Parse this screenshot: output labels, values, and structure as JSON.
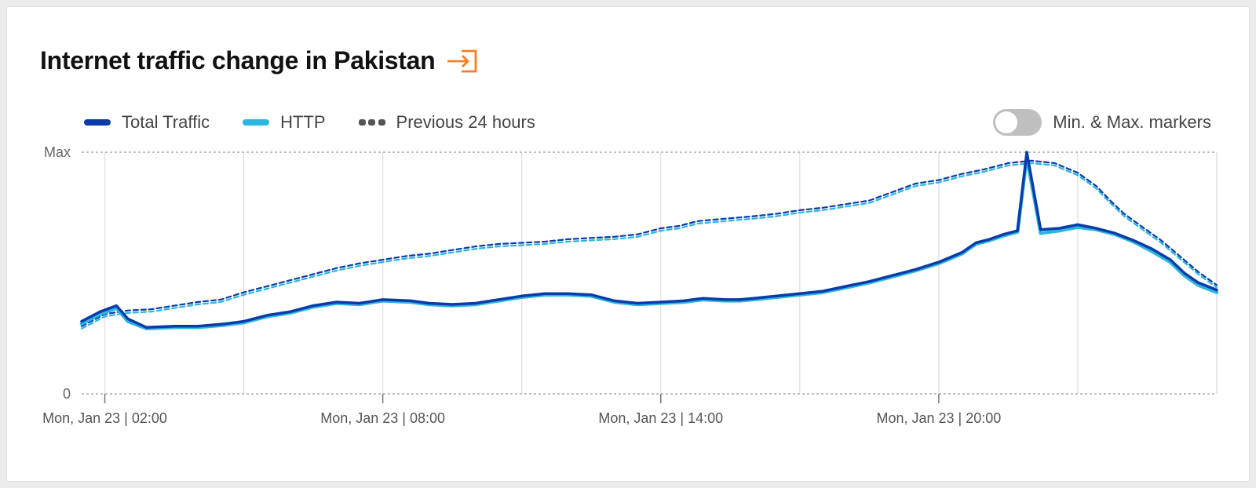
{
  "header": {
    "title": "Internet traffic change in Pakistan",
    "export_icon": "export-icon"
  },
  "legend": [
    {
      "label": "Total Traffic",
      "color": "#0a3ba8",
      "style": "solid"
    },
    {
      "label": "HTTP",
      "color": "#2ab6e0",
      "style": "solid"
    },
    {
      "label": "Previous 24 hours",
      "color": "#555555",
      "style": "dashed"
    }
  ],
  "toggle": {
    "label": "Min. & Max. markers",
    "state": "off"
  },
  "chart_data": {
    "type": "line",
    "x_unit": "hours since Mon, Jan 23 | 00:00",
    "y_ticks": [
      "Max",
      "0"
    ],
    "x_tick_labels": [
      "Mon, Jan 23 | 02:00",
      "Mon, Jan 23 | 08:00",
      "Mon, Jan 23 | 14:00",
      "Mon, Jan 23 | 20:00"
    ],
    "x_tick_hours": [
      2,
      8,
      14,
      20
    ],
    "xlim": [
      1.5,
      26
    ],
    "ylim": [
      0,
      1
    ],
    "grid": true,
    "legend_position": "top-left",
    "series": [
      {
        "name": "Total Traffic",
        "color": "#0a3ba8",
        "dashed": false,
        "points": [
          [
            1.5,
            0.3
          ],
          [
            1.9,
            0.34
          ],
          [
            2.25,
            0.365
          ],
          [
            2.5,
            0.31
          ],
          [
            2.9,
            0.275
          ],
          [
            3.5,
            0.28
          ],
          [
            4,
            0.28
          ],
          [
            4.6,
            0.29
          ],
          [
            5,
            0.3
          ],
          [
            5.5,
            0.325
          ],
          [
            6,
            0.34
          ],
          [
            6.5,
            0.365
          ],
          [
            7,
            0.38
          ],
          [
            7.5,
            0.375
          ],
          [
            8,
            0.39
          ],
          [
            8.6,
            0.385
          ],
          [
            9,
            0.375
          ],
          [
            9.5,
            0.37
          ],
          [
            10,
            0.375
          ],
          [
            10.5,
            0.39
          ],
          [
            11,
            0.405
          ],
          [
            11.5,
            0.415
          ],
          [
            12,
            0.415
          ],
          [
            12.5,
            0.41
          ],
          [
            13,
            0.385
          ],
          [
            13.5,
            0.375
          ],
          [
            14,
            0.38
          ],
          [
            14.5,
            0.385
          ],
          [
            14.9,
            0.395
          ],
          [
            15.4,
            0.39
          ],
          [
            15.7,
            0.39
          ],
          [
            16,
            0.395
          ],
          [
            16.5,
            0.405
          ],
          [
            17,
            0.415
          ],
          [
            17.5,
            0.425
          ],
          [
            18,
            0.445
          ],
          [
            18.5,
            0.465
          ],
          [
            19,
            0.49
          ],
          [
            19.5,
            0.515
          ],
          [
            20,
            0.545
          ],
          [
            20.5,
            0.585
          ],
          [
            20.8,
            0.625
          ],
          [
            21.1,
            0.64
          ],
          [
            21.4,
            0.66
          ],
          [
            21.7,
            0.675
          ],
          [
            21.9,
            1.0
          ],
          [
            22.2,
            0.68
          ],
          [
            22.6,
            0.685
          ],
          [
            23,
            0.7
          ],
          [
            23.4,
            0.685
          ],
          [
            23.8,
            0.665
          ],
          [
            24.2,
            0.635
          ],
          [
            24.6,
            0.6
          ],
          [
            25,
            0.555
          ],
          [
            25.3,
            0.5
          ],
          [
            25.6,
            0.46
          ],
          [
            26,
            0.43
          ]
        ]
      },
      {
        "name": "HTTP",
        "color": "#2ab6e0",
        "dashed": false,
        "points": [
          [
            1.5,
            0.29
          ],
          [
            1.9,
            0.33
          ],
          [
            2.25,
            0.355
          ],
          [
            2.5,
            0.3
          ],
          [
            2.9,
            0.27
          ],
          [
            3.5,
            0.275
          ],
          [
            4,
            0.275
          ],
          [
            4.6,
            0.285
          ],
          [
            5,
            0.295
          ],
          [
            5.5,
            0.32
          ],
          [
            6,
            0.335
          ],
          [
            6.5,
            0.36
          ],
          [
            7,
            0.375
          ],
          [
            7.5,
            0.37
          ],
          [
            8,
            0.385
          ],
          [
            8.6,
            0.38
          ],
          [
            9,
            0.37
          ],
          [
            9.5,
            0.365
          ],
          [
            10,
            0.37
          ],
          [
            10.5,
            0.385
          ],
          [
            11,
            0.4
          ],
          [
            11.5,
            0.41
          ],
          [
            12,
            0.41
          ],
          [
            12.5,
            0.405
          ],
          [
            13,
            0.38
          ],
          [
            13.5,
            0.37
          ],
          [
            14,
            0.375
          ],
          [
            14.5,
            0.38
          ],
          [
            14.9,
            0.39
          ],
          [
            15.4,
            0.385
          ],
          [
            15.7,
            0.385
          ],
          [
            16,
            0.39
          ],
          [
            16.5,
            0.4
          ],
          [
            17,
            0.41
          ],
          [
            17.5,
            0.42
          ],
          [
            18,
            0.44
          ],
          [
            18.5,
            0.46
          ],
          [
            19,
            0.485
          ],
          [
            19.5,
            0.51
          ],
          [
            20,
            0.54
          ],
          [
            20.5,
            0.58
          ],
          [
            20.8,
            0.62
          ],
          [
            21.1,
            0.635
          ],
          [
            21.4,
            0.655
          ],
          [
            21.7,
            0.67
          ],
          [
            21.9,
            0.98
          ],
          [
            22.2,
            0.665
          ],
          [
            22.6,
            0.675
          ],
          [
            23,
            0.69
          ],
          [
            23.4,
            0.68
          ],
          [
            23.8,
            0.66
          ],
          [
            24.2,
            0.63
          ],
          [
            24.6,
            0.59
          ],
          [
            25,
            0.545
          ],
          [
            25.3,
            0.49
          ],
          [
            25.6,
            0.45
          ],
          [
            26,
            0.42
          ]
        ]
      },
      {
        "name": "Previous 24 hours (Total Traffic)",
        "color": "#0a3ba8",
        "dashed": true,
        "points": [
          [
            1.5,
            0.28
          ],
          [
            2,
            0.33
          ],
          [
            2.5,
            0.345
          ],
          [
            3,
            0.35
          ],
          [
            3.5,
            0.365
          ],
          [
            4,
            0.38
          ],
          [
            4.5,
            0.39
          ],
          [
            5,
            0.42
          ],
          [
            5.5,
            0.445
          ],
          [
            6,
            0.47
          ],
          [
            6.5,
            0.495
          ],
          [
            7,
            0.52
          ],
          [
            7.5,
            0.54
          ],
          [
            8,
            0.555
          ],
          [
            8.5,
            0.57
          ],
          [
            9,
            0.58
          ],
          [
            9.5,
            0.595
          ],
          [
            10,
            0.61
          ],
          [
            10.5,
            0.62
          ],
          [
            11,
            0.625
          ],
          [
            11.5,
            0.63
          ],
          [
            12,
            0.64
          ],
          [
            12.5,
            0.645
          ],
          [
            13,
            0.65
          ],
          [
            13.5,
            0.66
          ],
          [
            14,
            0.685
          ],
          [
            14.4,
            0.695
          ],
          [
            14.8,
            0.715
          ],
          [
            15.1,
            0.72
          ],
          [
            15.4,
            0.725
          ],
          [
            15.7,
            0.73
          ],
          [
            16,
            0.735
          ],
          [
            16.5,
            0.745
          ],
          [
            17,
            0.76
          ],
          [
            17.5,
            0.77
          ],
          [
            18,
            0.785
          ],
          [
            18.5,
            0.8
          ],
          [
            19,
            0.835
          ],
          [
            19.5,
            0.87
          ],
          [
            20,
            0.885
          ],
          [
            20.5,
            0.91
          ],
          [
            21,
            0.93
          ],
          [
            21.5,
            0.955
          ],
          [
            22,
            0.965
          ],
          [
            22.5,
            0.955
          ],
          [
            23,
            0.915
          ],
          [
            23.4,
            0.86
          ],
          [
            23.7,
            0.8
          ],
          [
            24,
            0.745
          ],
          [
            24.4,
            0.69
          ],
          [
            24.8,
            0.635
          ],
          [
            25.2,
            0.57
          ],
          [
            25.6,
            0.505
          ],
          [
            26,
            0.45
          ]
        ]
      },
      {
        "name": "Previous 24 hours (HTTP)",
        "color": "#2ab6e0",
        "dashed": true,
        "points": [
          [
            1.5,
            0.27
          ],
          [
            2,
            0.32
          ],
          [
            2.5,
            0.335
          ],
          [
            3,
            0.34
          ],
          [
            3.5,
            0.355
          ],
          [
            4,
            0.37
          ],
          [
            4.5,
            0.38
          ],
          [
            5,
            0.41
          ],
          [
            5.5,
            0.435
          ],
          [
            6,
            0.46
          ],
          [
            6.5,
            0.485
          ],
          [
            7,
            0.51
          ],
          [
            7.5,
            0.53
          ],
          [
            8,
            0.545
          ],
          [
            8.5,
            0.56
          ],
          [
            9,
            0.57
          ],
          [
            9.5,
            0.585
          ],
          [
            10,
            0.6
          ],
          [
            10.5,
            0.61
          ],
          [
            11,
            0.615
          ],
          [
            11.5,
            0.62
          ],
          [
            12,
            0.63
          ],
          [
            12.5,
            0.635
          ],
          [
            13,
            0.64
          ],
          [
            13.5,
            0.65
          ],
          [
            14,
            0.675
          ],
          [
            14.4,
            0.685
          ],
          [
            14.8,
            0.705
          ],
          [
            15.1,
            0.71
          ],
          [
            15.4,
            0.715
          ],
          [
            15.7,
            0.72
          ],
          [
            16,
            0.725
          ],
          [
            16.5,
            0.735
          ],
          [
            17,
            0.75
          ],
          [
            17.5,
            0.76
          ],
          [
            18,
            0.775
          ],
          [
            18.5,
            0.79
          ],
          [
            19,
            0.825
          ],
          [
            19.5,
            0.86
          ],
          [
            20,
            0.875
          ],
          [
            20.5,
            0.9
          ],
          [
            21,
            0.92
          ],
          [
            21.5,
            0.945
          ],
          [
            22,
            0.955
          ],
          [
            22.5,
            0.945
          ],
          [
            23,
            0.905
          ],
          [
            23.4,
            0.85
          ],
          [
            23.7,
            0.79
          ],
          [
            24,
            0.735
          ],
          [
            24.4,
            0.68
          ],
          [
            24.8,
            0.625
          ],
          [
            25.2,
            0.56
          ],
          [
            25.6,
            0.495
          ],
          [
            26,
            0.44
          ]
        ]
      }
    ]
  }
}
